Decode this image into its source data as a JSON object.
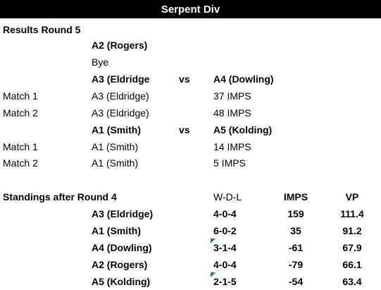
{
  "title": "Serpent Div",
  "results": {
    "heading": "Results Round 5",
    "bye_team": "A2 (Rogers)",
    "bye_label": "Bye",
    "vs_label": "vs",
    "matchups": [
      {
        "home": "A3 (Eldridge",
        "away": "A4 (Dowling)",
        "matches": [
          {
            "label": "Match 1",
            "team": "A3 (Eldridge)",
            "score": "37 IMPS"
          },
          {
            "label": "Match 2",
            "team": "A3 (Eldridge)",
            "score": "48 IMPS"
          }
        ]
      },
      {
        "home": "A1 (Smith)",
        "away": "A5 (Kolding)",
        "matches": [
          {
            "label": "Match 1",
            "team": "A1 (Smith)",
            "score": "14 IMPS"
          },
          {
            "label": "Match 2",
            "team": "A1 (Smith)",
            "score": "5 IMPS"
          }
        ]
      }
    ]
  },
  "standings": {
    "heading": "Standings after Round 4",
    "columns": {
      "wdl": "W-D-L",
      "imps": "IMPS",
      "vp": "VP"
    },
    "rows": [
      {
        "team": "A3 (Eldridge)",
        "wdl": "4-0-4",
        "imps": "159",
        "vp": "111.4"
      },
      {
        "team": "A1 (Smith)",
        "wdl": "6-0-2",
        "imps": "35",
        "vp": "91.2"
      },
      {
        "team": "A4 (Dowling)",
        "wdl": "3-1-4",
        "imps": "-61",
        "vp": "67.9"
      },
      {
        "team": "A2 (Rogers)",
        "wdl": "4-0-4",
        "imps": "-79",
        "vp": "66.1"
      },
      {
        "team": "A5 (Kolding)",
        "wdl": "2-1-5",
        "imps": "-54",
        "vp": "63.4"
      }
    ],
    "comment_marker_color": "#1e8f3a"
  }
}
